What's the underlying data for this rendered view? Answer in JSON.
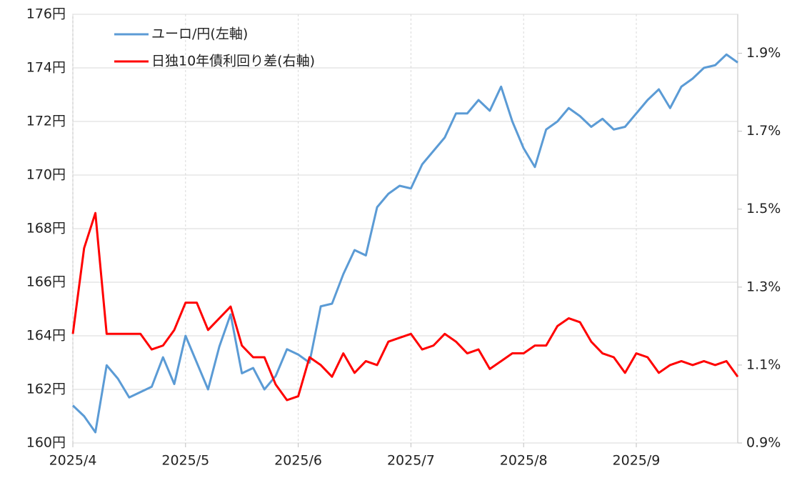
{
  "chart_data": {
    "type": "line",
    "categories": [
      "2025/4",
      null,
      null,
      null,
      null,
      null,
      null,
      null,
      null,
      null,
      "2025/5",
      null,
      null,
      null,
      null,
      null,
      null,
      null,
      null,
      null,
      "2025/6",
      null,
      null,
      null,
      null,
      null,
      null,
      null,
      null,
      null,
      "2025/7",
      null,
      null,
      null,
      null,
      null,
      null,
      null,
      null,
      null,
      "2025/8",
      null,
      null,
      null,
      null,
      null,
      null,
      null,
      null,
      null,
      "2025/9",
      null,
      null,
      null,
      null,
      null,
      null,
      null,
      null,
      null
    ],
    "series": [
      {
        "name": "ユーロ/円(左軸)",
        "color": "#5b9bd5",
        "values": [
          161.4,
          161.0,
          160.4,
          162.9,
          162.4,
          161.7,
          161.9,
          162.1,
          163.2,
          162.2,
          164.0,
          163.0,
          162.0,
          163.6,
          164.8,
          162.6,
          162.8,
          162.0,
          162.5,
          163.5,
          163.3,
          163.0,
          165.1,
          165.2,
          166.3,
          167.2,
          167.0,
          168.8,
          169.3,
          169.6,
          169.5,
          170.4,
          170.9,
          171.4,
          172.3,
          172.3,
          172.8,
          172.4,
          173.3,
          172.0,
          171.0,
          170.3,
          171.7,
          172.0,
          172.5,
          172.2,
          171.8,
          172.1,
          171.7,
          171.8,
          172.3,
          172.8,
          173.2,
          172.5,
          173.3,
          173.6,
          174.0,
          174.1,
          174.5,
          174.2
        ]
      },
      {
        "name": "日独10年債利回り差(右軸)",
        "color": "#ff0000",
        "axis": "y2",
        "values": [
          1.18,
          1.4,
          1.49,
          1.18,
          1.18,
          1.18,
          1.18,
          1.14,
          1.15,
          1.19,
          1.26,
          1.26,
          1.19,
          1.22,
          1.25,
          1.15,
          1.12,
          1.12,
          1.05,
          1.01,
          1.02,
          1.12,
          1.1,
          1.07,
          1.13,
          1.08,
          1.11,
          1.1,
          1.16,
          1.17,
          1.18,
          1.14,
          1.15,
          1.18,
          1.16,
          1.13,
          1.14,
          1.09,
          1.11,
          1.13,
          1.13,
          1.15,
          1.15,
          1.2,
          1.22,
          1.21,
          1.16,
          1.13,
          1.12,
          1.08,
          1.13,
          1.12,
          1.08,
          1.1,
          1.11,
          1.1,
          1.11,
          1.1,
          1.11,
          1.07
        ]
      }
    ],
    "ylim": [
      160,
      176
    ],
    "yticks": [
      {
        "value": 160,
        "label": "160円"
      },
      {
        "value": 162,
        "label": "162円"
      },
      {
        "value": 164,
        "label": "164円"
      },
      {
        "value": 166,
        "label": "166円"
      },
      {
        "value": 168,
        "label": "168円"
      },
      {
        "value": 170,
        "label": "170円"
      },
      {
        "value": 172,
        "label": "172円"
      },
      {
        "value": 174,
        "label": "174円"
      },
      {
        "value": 176,
        "label": "176円"
      }
    ],
    "y2lim": [
      0.9,
      2.0
    ],
    "y2ticks": [
      {
        "value": 0.9,
        "label": "0.9%"
      },
      {
        "value": 1.1,
        "label": "1.1%"
      },
      {
        "value": 1.3,
        "label": "1.3%"
      },
      {
        "value": 1.5,
        "label": "1.5%"
      },
      {
        "value": 1.7,
        "label": "1.7%"
      },
      {
        "value": 1.9,
        "label": "1.9%"
      }
    ],
    "grid": true,
    "legend": "upper left"
  }
}
